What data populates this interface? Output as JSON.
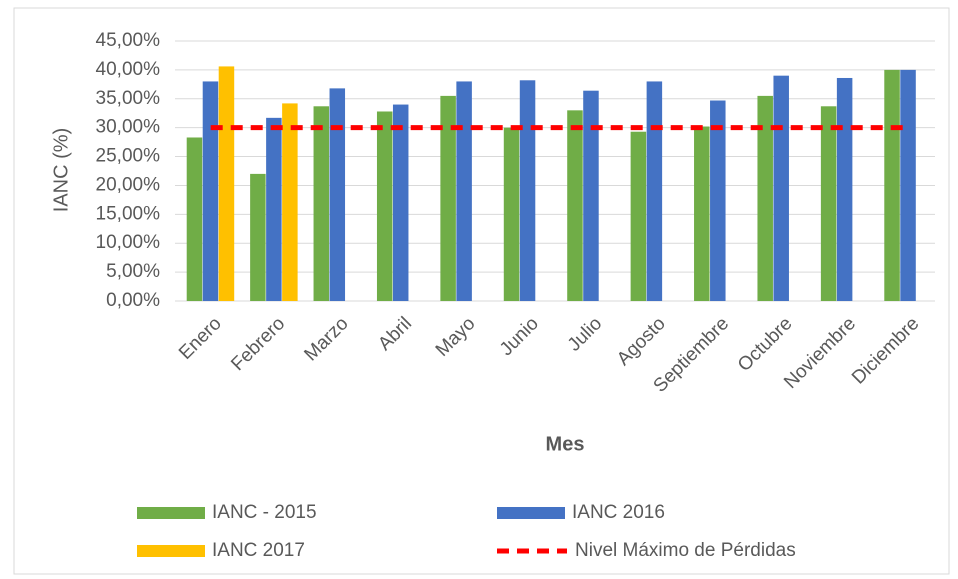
{
  "chart_data": {
    "type": "bar",
    "x_label": "Mes",
    "y_label": "IANC (%)",
    "categories": [
      "Enero",
      "Febrero",
      "Marzo",
      "Abril",
      "Mayo",
      "Junio",
      "Julio",
      "Agosto",
      "Septiembre",
      "Octubre",
      "Noviembre",
      "Diciembre"
    ],
    "series": [
      {
        "name": "IANC - 2015",
        "color": "#70ad47",
        "values": [
          28.3,
          22.0,
          33.7,
          32.8,
          35.5,
          30.0,
          33.0,
          29.3,
          30.2,
          35.5,
          33.7,
          40.0
        ]
      },
      {
        "name": "IANC 2016",
        "color": "#4472c4",
        "values": [
          38.0,
          31.7,
          36.8,
          34.0,
          38.0,
          38.2,
          36.4,
          38.0,
          34.7,
          39.0,
          38.6,
          40.0
        ]
      },
      {
        "name": "IANC 2017",
        "color": "#ffc000",
        "values": [
          40.6,
          34.2,
          null,
          null,
          null,
          null,
          null,
          null,
          null,
          null,
          null,
          null
        ]
      },
      {
        "name": "Nivel Máximo de Pérdidas",
        "color": "#ff0000",
        "type": "line",
        "dashed": true,
        "values": [
          30,
          30,
          30,
          30,
          30,
          30,
          30,
          30,
          30,
          30,
          30,
          30
        ]
      }
    ],
    "ylim": [
      0,
      45
    ],
    "yticks": [
      {
        "value": 0,
        "label": "0,00%"
      },
      {
        "value": 5,
        "label": "5,00%"
      },
      {
        "value": 10,
        "label": "10,00%"
      },
      {
        "value": 15,
        "label": "15,00%"
      },
      {
        "value": 20,
        "label": "20,00%"
      },
      {
        "value": 25,
        "label": "25,00%"
      },
      {
        "value": 30,
        "label": "30,00%"
      },
      {
        "value": 35,
        "label": "35,00%"
      },
      {
        "value": 40,
        "label": "40,00%"
      },
      {
        "value": 45,
        "label": "45,00%"
      }
    ],
    "grid": true
  }
}
